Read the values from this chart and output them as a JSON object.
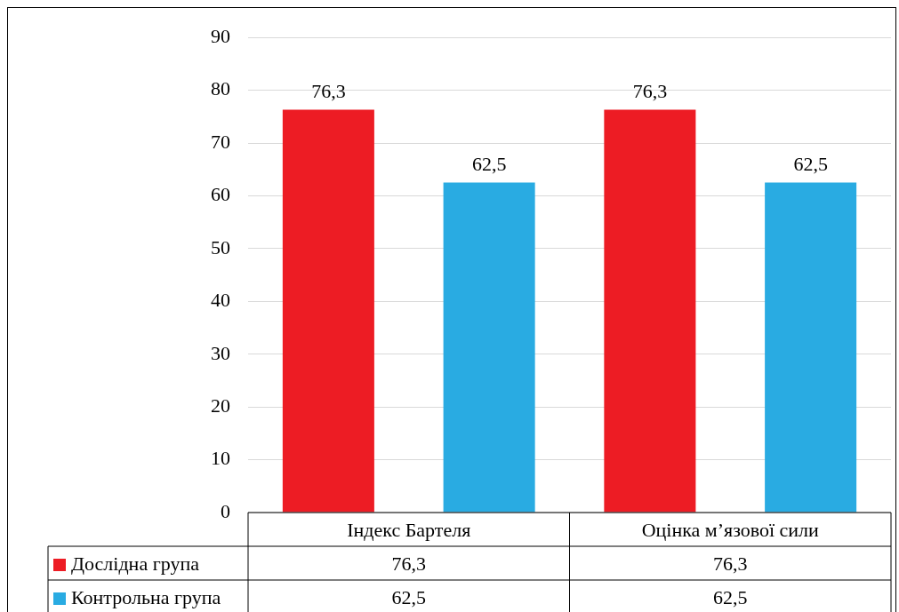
{
  "chart_data": {
    "type": "bar",
    "categories": [
      "Індекс Бартеля",
      "Оцінка м’язової сили"
    ],
    "series": [
      {
        "name": "Дослідна група",
        "color": "#ed1c24",
        "values": [
          76.3,
          76.3
        ],
        "value_labels": [
          "76,3",
          "76,3"
        ]
      },
      {
        "name": "Контрольна група",
        "color": "#29abe2",
        "values": [
          62.5,
          62.5
        ],
        "value_labels": [
          "62,5",
          "62,5"
        ]
      }
    ],
    "ylim": [
      0,
      90
    ],
    "yticks": [
      0,
      10,
      20,
      30,
      40,
      50,
      60,
      70,
      80,
      90
    ],
    "grid": "y",
    "legend": "bottom left"
  }
}
